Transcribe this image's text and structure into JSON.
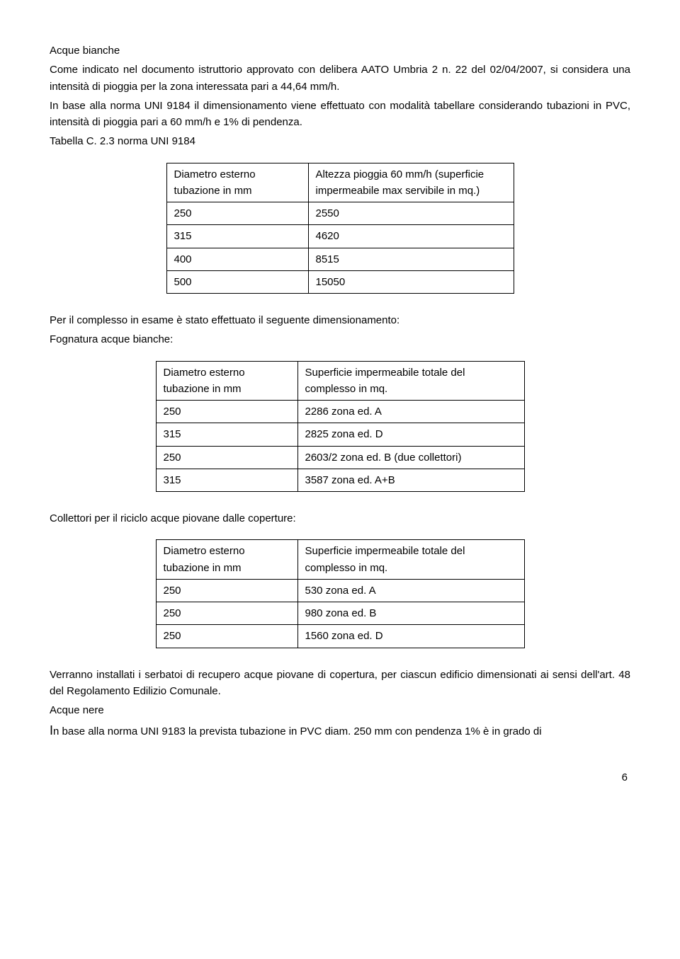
{
  "acque_bianche": {
    "title": "Acque bianche",
    "p1": "Come indicato nel documento istruttorio approvato con delibera AATO Umbria 2 n. 22 del 02/04/2007, si considera una intensità di pioggia per la zona interessata pari a 44,64 mm/h.",
    "p2": "In base alla norma UNI 9184 il dimensionamento viene effettuato con modalità tabellare considerando tubazioni in PVC, intensità di pioggia pari a 60 mm/h e 1% di pendenza.",
    "p3": "Tabella C. 2.3 norma UNI 9184"
  },
  "table1": {
    "header_left": "Diametro esterno tubazione in mm",
    "header_right": "Altezza pioggia 60 mm/h (superficie impermeabile max servibile in mq.)",
    "rows": [
      {
        "c1": "250",
        "c2": "2550"
      },
      {
        "c1": "315",
        "c2": "4620"
      },
      {
        "c1": "400",
        "c2": "8515"
      },
      {
        "c1": "500",
        "c2": "15050"
      }
    ]
  },
  "mid": {
    "p1": "Per il complesso in esame è stato effettuato il seguente dimensionamento:",
    "p2": "Fognatura acque bianche:"
  },
  "table2": {
    "header_left": "Diametro esterno tubazione in mm",
    "header_right": "Superficie impermeabile totale del complesso in mq.",
    "rows": [
      {
        "c1": "250",
        "c2": "2286  zona ed. A"
      },
      {
        "c1": "315",
        "c2": "2825 zona ed. D"
      },
      {
        "c1": "250",
        "c2": "2603/2 zona ed. B (due collettori)"
      },
      {
        "c1": "315",
        "c2": "3587 zona ed. A+B"
      }
    ]
  },
  "collettori": {
    "p1": "Collettori per il riciclo acque piovane dalle coperture:"
  },
  "table3": {
    "header_left": "Diametro esterno tubazione in mm",
    "header_right": "Superficie impermeabile totale del complesso in mq.",
    "rows": [
      {
        "c1": "250",
        "c2": "530  zona ed. A"
      },
      {
        "c1": "250",
        "c2": "980 zona ed. B"
      },
      {
        "c1": "250",
        "c2": "1560  zona ed. D"
      }
    ]
  },
  "bottom": {
    "p1": "Verranno installati i serbatoi di recupero acque piovane di copertura, per ciascun edificio dimensionati ai sensi dell'art. 48 del Regolamento Edilizio Comunale.",
    "title": "Acque nere",
    "p2_prefix": "I",
    "p2": "n base alla norma UNI 9183 la prevista tubazione in PVC diam. 250 mm con pendenza 1% è in grado di"
  },
  "page_number": "6"
}
